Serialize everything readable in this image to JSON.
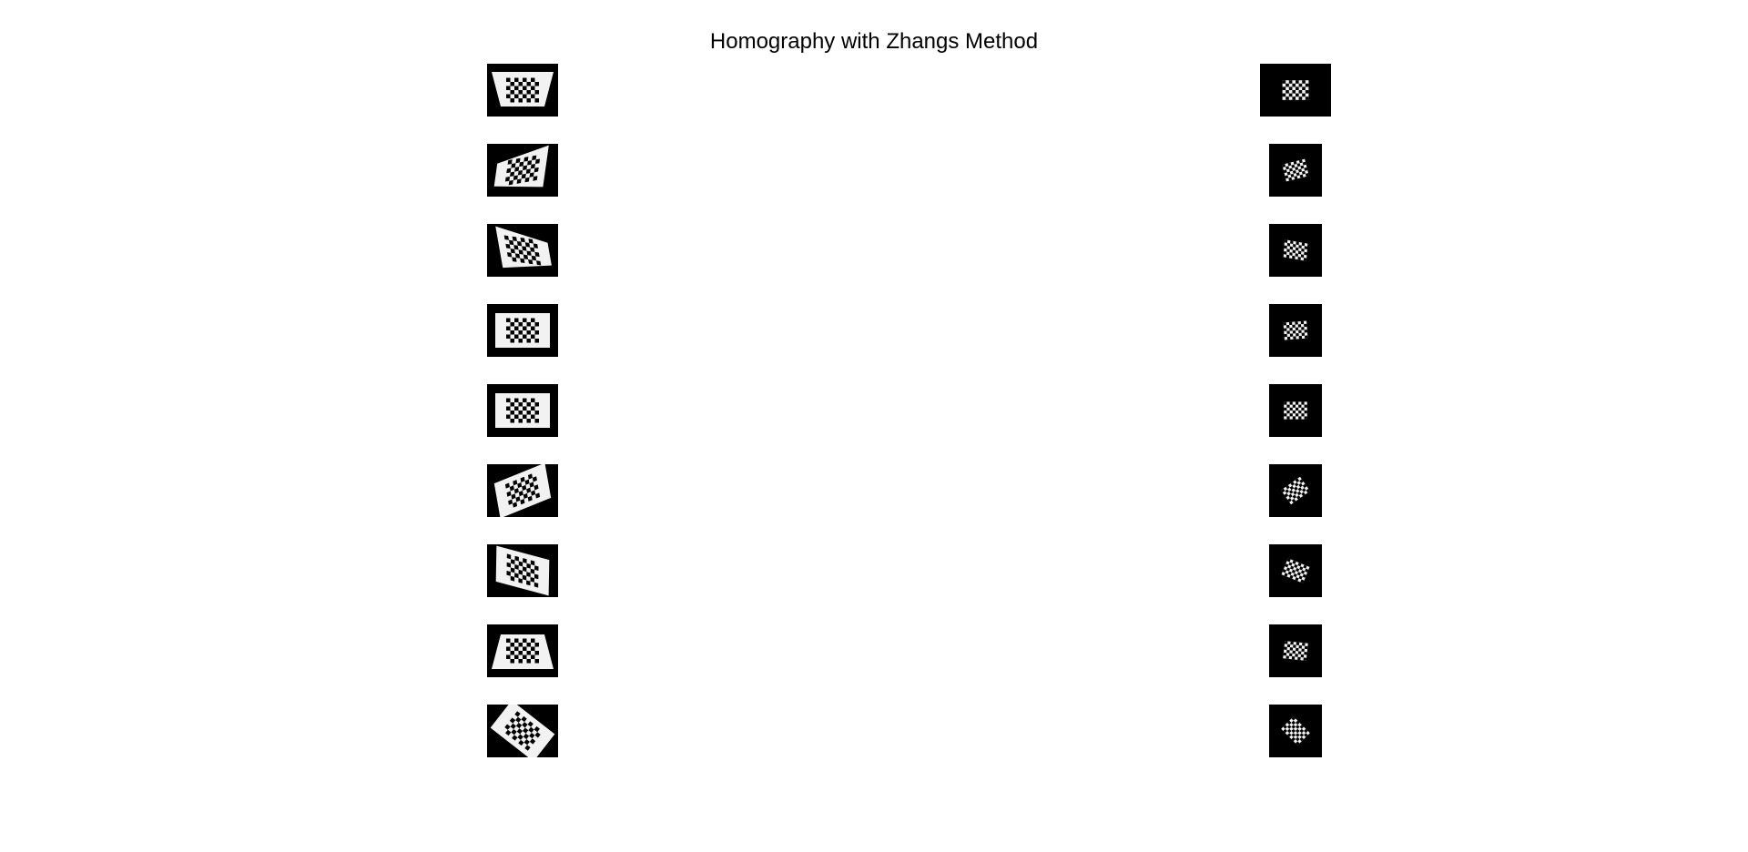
{
  "figure": {
    "title": "Homography with Zhangs Method"
  },
  "rows": [
    {
      "original": {
        "board_rotation_deg": 0,
        "skew_x_deg": 0,
        "perspective": "top-wide"
      },
      "warped": {
        "rotation_deg": 0,
        "skew_x_deg": 0
      }
    },
    {
      "original": {
        "board_rotation_deg": -10,
        "skew_x_deg": -18,
        "perspective": "right-tall"
      },
      "warped": {
        "rotation_deg": -14,
        "skew_x_deg": 0
      }
    },
    {
      "original": {
        "board_rotation_deg": 8,
        "skew_x_deg": 18,
        "perspective": "left-tall"
      },
      "warped": {
        "rotation_deg": 10,
        "skew_x_deg": 6
      }
    },
    {
      "original": {
        "board_rotation_deg": 0,
        "skew_x_deg": 0,
        "perspective": "flat"
      },
      "warped": {
        "rotation_deg": -4,
        "skew_x_deg": 0
      }
    },
    {
      "original": {
        "board_rotation_deg": 0,
        "skew_x_deg": 0,
        "perspective": "flat"
      },
      "warped": {
        "rotation_deg": 0,
        "skew_x_deg": 0
      }
    },
    {
      "original": {
        "board_rotation_deg": -22,
        "skew_x_deg": -12,
        "perspective": "flat"
      },
      "warped": {
        "rotation_deg": -35,
        "skew_x_deg": 0
      }
    },
    {
      "original": {
        "board_rotation_deg": 15,
        "skew_x_deg": 14,
        "perspective": "flat"
      },
      "warped": {
        "rotation_deg": 22,
        "skew_x_deg": 0
      }
    },
    {
      "original": {
        "board_rotation_deg": 0,
        "skew_x_deg": 0,
        "perspective": "bottom-wide"
      },
      "warped": {
        "rotation_deg": 6,
        "skew_x_deg": 0
      }
    },
    {
      "original": {
        "board_rotation_deg": 38,
        "skew_x_deg": 0,
        "perspective": "flat"
      },
      "warped": {
        "rotation_deg": 45,
        "skew_x_deg": 0
      }
    }
  ],
  "colors": {
    "background": "#ffffff",
    "thumb_background": "#000000",
    "board_light": "#f2f2f2",
    "board_dark": "#000000"
  }
}
